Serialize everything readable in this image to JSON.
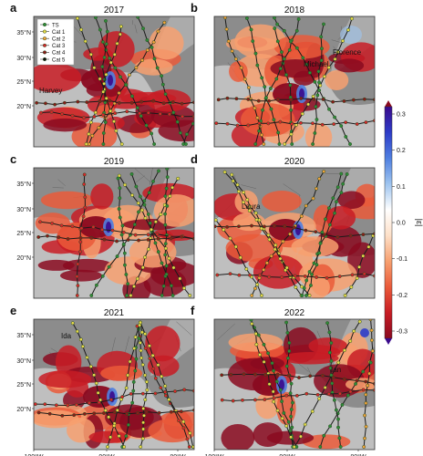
{
  "panels": [
    {
      "letter": "a",
      "year": "2017",
      "storms": [
        "Harvey"
      ]
    },
    {
      "letter": "b",
      "year": "2018",
      "storms": [
        "Michael",
        "Florence"
      ]
    },
    {
      "letter": "c",
      "year": "2019",
      "storms": []
    },
    {
      "letter": "d",
      "year": "2020",
      "storms": [
        "Laura"
      ]
    },
    {
      "letter": "e",
      "year": "2021",
      "storms": [
        "Ida"
      ]
    },
    {
      "letter": "f",
      "year": "2022",
      "storms": [
        "Ian"
      ]
    }
  ],
  "lat_ticks": [
    "35°N",
    "30°N",
    "25°N",
    "20°N"
  ],
  "lon_ticks": [
    "100°W",
    "90°W",
    "80°W"
  ],
  "legend": [
    {
      "label": "TS",
      "color": "#2e8b3a"
    },
    {
      "label": "Cat 1",
      "color": "#e8d94a"
    },
    {
      "label": "Cat 2",
      "color": "#f2a23a"
    },
    {
      "label": "Cat 3",
      "color": "#d8262c"
    },
    {
      "label": "Cat 4",
      "color": "#8b1a1a"
    },
    {
      "label": "Cat 5",
      "color": "#111111"
    }
  ],
  "colorbar": {
    "label": "|ε|",
    "ticks": [
      "0.3",
      "0.2",
      "0.1",
      "0.0",
      "-0.1",
      "-0.2",
      "-0.3"
    ],
    "colors": [
      "#3a0a8c",
      "#2d3cc8",
      "#4f7fe0",
      "#9ec4ef",
      "#ffffff",
      "#fde0c8",
      "#f7a070",
      "#ea5a3a",
      "#c81c24",
      "#8a0a20"
    ]
  },
  "map_colors": {
    "land": "#8c8c8c",
    "ocean": "#bfbfbf",
    "border": "#5a5a5a"
  }
}
